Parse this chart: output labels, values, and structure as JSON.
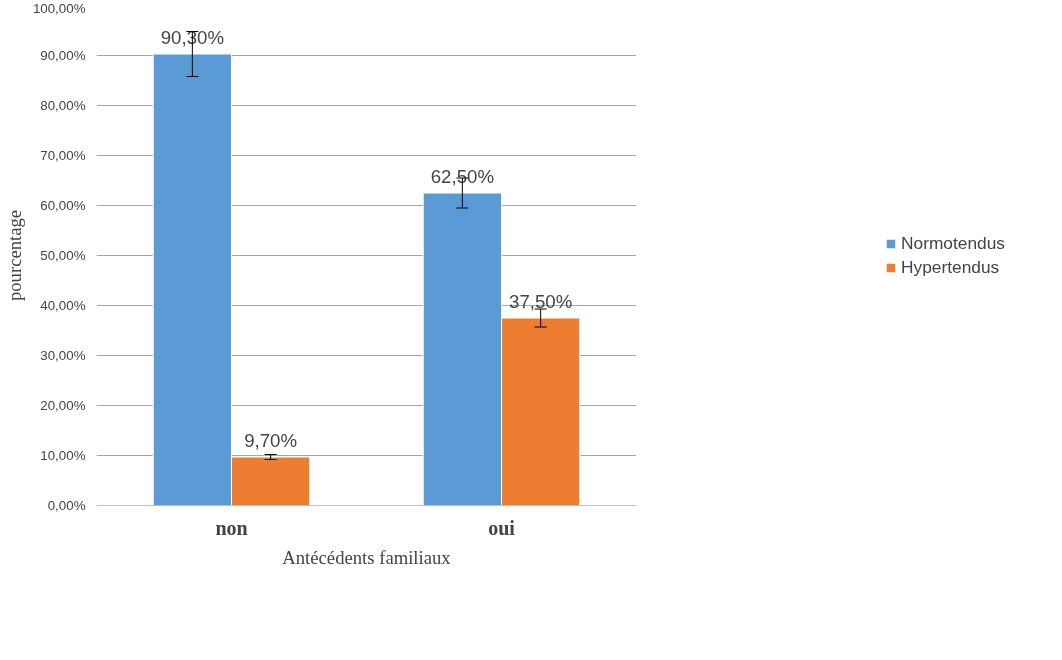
{
  "chart_data": {
    "type": "bar",
    "xlabel": "Antécédents familiaux",
    "ylabel": "pourcentage",
    "categories": [
      "non",
      "oui"
    ],
    "series": [
      {
        "name": "Normotendus",
        "color": "#5b9bd5",
        "values": [
          90.3,
          62.5
        ],
        "errors": [
          4.5,
          3
        ],
        "value_labels": [
          "90,30%",
          "62,50%"
        ]
      },
      {
        "name": "Hypertendus",
        "color": "#ed7d31",
        "values": [
          9.7,
          37.5
        ],
        "errors": [
          0.5,
          1.8
        ],
        "value_labels": [
          "9,70%",
          "37,50%"
        ]
      }
    ],
    "ylim": [
      0,
      100
    ],
    "yticks": [
      {
        "value": 0,
        "label": "0,00%"
      },
      {
        "value": 10,
        "label": "10,00%"
      },
      {
        "value": 20,
        "label": "20,00%"
      },
      {
        "value": 30,
        "label": "30,00%"
      },
      {
        "value": 40,
        "label": "40,00%"
      },
      {
        "value": 50,
        "label": "50,00%"
      },
      {
        "value": 60,
        "label": "60,00%"
      },
      {
        "value": 70,
        "label": "70,00%"
      },
      {
        "value": 80,
        "label": "80,00%"
      },
      {
        "value": 90,
        "label": "90,00%"
      },
      {
        "value": 100,
        "label": "100,00%"
      }
    ],
    "grid": "y",
    "legend": "right"
  }
}
